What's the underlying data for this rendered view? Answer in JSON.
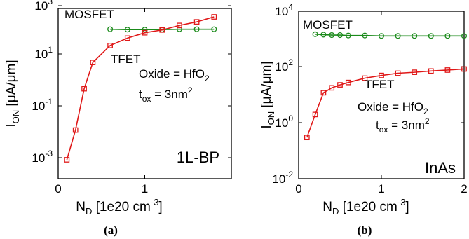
{
  "chart_data": [
    {
      "type": "line",
      "yscale": "log",
      "xlim": [
        0,
        2
      ],
      "ylim": [
        0.0001,
        1000
      ],
      "x_ticks": [
        "0",
        "1"
      ],
      "y_ticks": [
        {
          "base": "10",
          "exp": "-3"
        },
        {
          "base": "10",
          "exp": "-1"
        },
        {
          "base": "10",
          "exp": "1"
        },
        {
          "base": "10",
          "exp": "3"
        }
      ],
      "xlabel": {
        "main": "N",
        "sub": "D",
        "rest": " [1e20 cm",
        "sup": "-3",
        "end": "]"
      },
      "ylabel": {
        "main": "I",
        "sub": "ON",
        "rest": " [μA/μm]"
      },
      "annotation": {
        "oxide_prefix": "Oxide = HfO",
        "oxide_sub": "2",
        "tox_main": "t",
        "tox_sub": "ox",
        "tox_rest": " = 3nm",
        "tox_sup": "2"
      },
      "corner_label": "1L-BP",
      "caption": "(a)",
      "series": [
        {
          "name": "MOSFET",
          "color": "#1a8a1a",
          "marker": "circle",
          "x": [
            0.6,
            0.8,
            1.0,
            1.2,
            1.4,
            1.6,
            1.8
          ],
          "y": [
            140,
            135,
            135,
            135,
            140,
            140,
            140
          ]
        },
        {
          "name": "TFET",
          "color": "#e01818",
          "marker": "square",
          "x": [
            0.1,
            0.2,
            0.3,
            0.4,
            0.6,
            0.8,
            1.0,
            1.2,
            1.4,
            1.6,
            1.8
          ],
          "y": [
            0.0006,
            0.01,
            0.5,
            6,
            30,
            60,
            100,
            130,
            200,
            280,
            450
          ]
        }
      ]
    },
    {
      "type": "line",
      "yscale": "log",
      "xlim": [
        0,
        2
      ],
      "ylim": [
        0.01,
        10000
      ],
      "x_ticks": [
        "0",
        "1",
        "2"
      ],
      "y_ticks": [
        {
          "base": "10",
          "exp": "-2"
        },
        {
          "base": "10",
          "exp": "0"
        },
        {
          "base": "10",
          "exp": "2"
        },
        {
          "base": "10",
          "exp": "4"
        }
      ],
      "xlabel": {
        "main": "N",
        "sub": "D",
        "rest": " [1e20 cm",
        "sup": "-3",
        "end": "]"
      },
      "ylabel": {
        "main": "I",
        "sub": "ON",
        "rest": " [μA/μm]"
      },
      "annotation": {
        "oxide_prefix": "Oxide = HfO",
        "oxide_sub": "2",
        "tox_main": "t",
        "tox_sub": "ox",
        "tox_rest": " = 3nm",
        "tox_sup": "2"
      },
      "corner_label": "InAs",
      "caption": "(b)",
      "series": [
        {
          "name": "MOSFET",
          "color": "#1a8a1a",
          "marker": "circle",
          "x": [
            0.2,
            0.3,
            0.4,
            0.5,
            0.6,
            0.8,
            1.0,
            1.2,
            1.4,
            1.6,
            1.8,
            2.0
          ],
          "y": [
            1500,
            1450,
            1400,
            1400,
            1350,
            1350,
            1300,
            1300,
            1300,
            1300,
            1300,
            1300
          ]
        },
        {
          "name": "TFET",
          "color": "#e01818",
          "marker": "square",
          "x": [
            0.1,
            0.2,
            0.3,
            0.4,
            0.5,
            0.6,
            0.8,
            1.0,
            1.2,
            1.4,
            1.6,
            1.8,
            2.0
          ],
          "y": [
            0.3,
            2,
            12,
            18,
            23,
            28,
            40,
            50,
            60,
            65,
            72,
            78,
            85
          ]
        }
      ]
    }
  ]
}
